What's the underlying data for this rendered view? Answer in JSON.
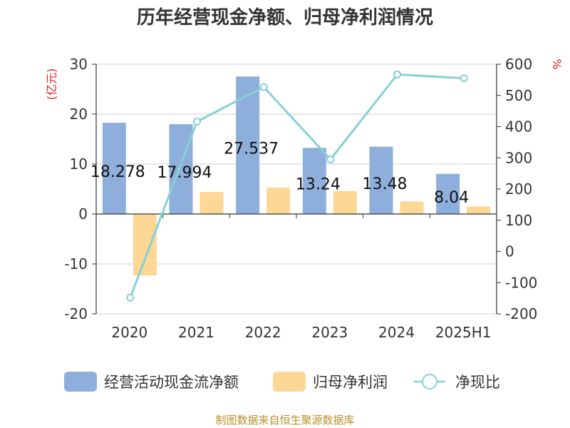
{
  "title": "历年经营现金净额、归母净利润情况",
  "source": "制图数据来自恒生聚源数据库",
  "chart_data": {
    "type": "bar",
    "categories": [
      "2020",
      "2021",
      "2022",
      "2023",
      "2024",
      "2025H1"
    ],
    "y_left": {
      "unit": "(亿元)",
      "ylim": [
        -20,
        30
      ],
      "ticks": [
        -20,
        -10,
        0,
        10,
        20,
        30
      ]
    },
    "y_right": {
      "unit": "%",
      "ylim": [
        -200,
        600
      ],
      "ticks": [
        -200,
        -100,
        0,
        100,
        200,
        300,
        400,
        500,
        600
      ]
    },
    "grid": true,
    "legend": "bottom",
    "series": [
      {
        "name": "经营活动现金流净额",
        "kind": "bar",
        "axis": "left",
        "color": "#8eaedb",
        "values": [
          18.278,
          17.994,
          27.537,
          13.24,
          13.48,
          8.04
        ],
        "labels": [
          "18.278",
          "17.994",
          "27.537",
          "13.24",
          "13.48",
          "8.04"
        ]
      },
      {
        "name": "归母净利润",
        "kind": "bar",
        "axis": "left",
        "color": "#fdd795",
        "values": [
          -12.3,
          4.4,
          5.3,
          4.6,
          2.5,
          1.5
        ]
      },
      {
        "name": "净现比",
        "kind": "line",
        "axis": "right",
        "color": "#86d1d6",
        "values": [
          -148,
          416,
          527,
          295,
          567,
          555
        ]
      }
    ]
  }
}
